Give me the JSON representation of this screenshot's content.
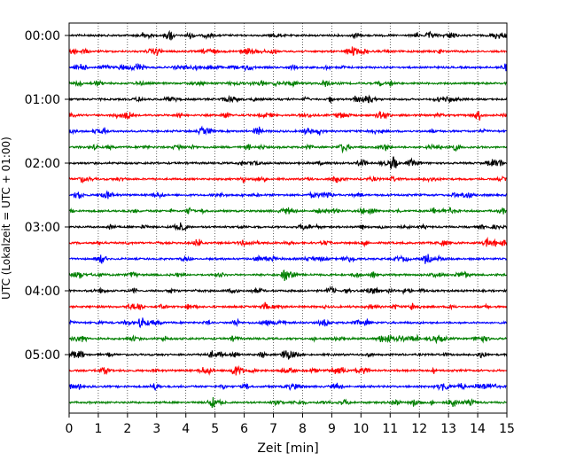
{
  "chart_data": {
    "type": "line",
    "title": "",
    "xlabel": "Zeit  [min]",
    "ylabel": "UTC (Lokalzeit = UTC + 01:00)",
    "xlim": [
      0,
      15
    ],
    "x_ticks": [
      "0",
      "1",
      "2",
      "3",
      "4",
      "5",
      "6",
      "7",
      "8",
      "9",
      "10",
      "11",
      "12",
      "13",
      "14",
      "15"
    ],
    "y_ticks": [
      "00:00",
      "01:00",
      "02:00",
      "03:00",
      "04:00",
      "05:00"
    ],
    "trace_count": 24,
    "trace_interval_min": 15,
    "trace_colors": [
      "#000000",
      "#ff0000",
      "#0000ff",
      "#007f00"
    ],
    "grid": {
      "vertical_dotted": true,
      "horizontal": false
    },
    "legend": "none"
  }
}
